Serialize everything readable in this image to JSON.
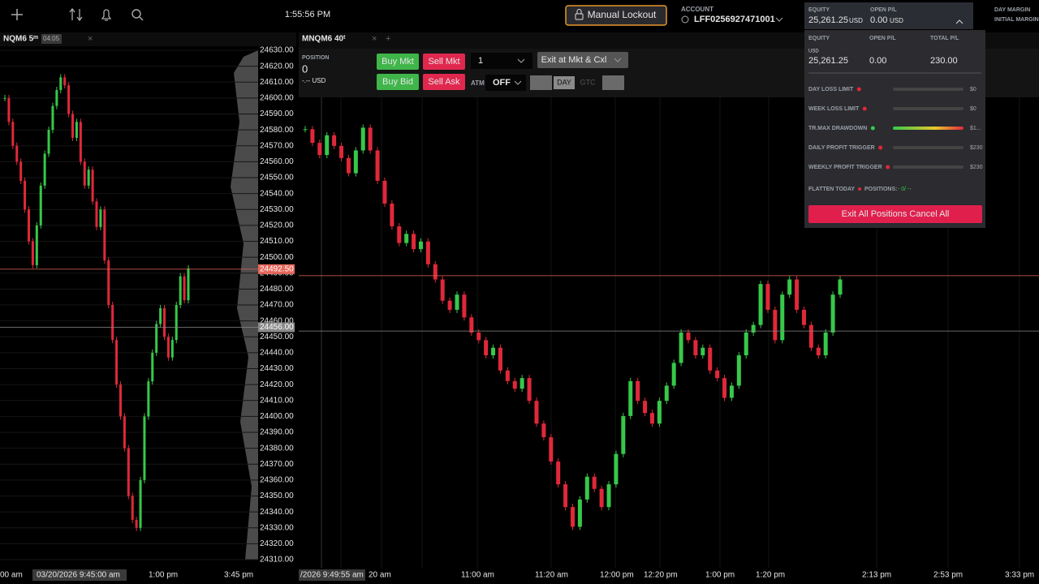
{
  "topbar": {
    "time": "1:55:56 PM",
    "lockout_button": "Manual Lockout",
    "account_label": "ACCOUNT",
    "account_id": "LFF0256927471001",
    "equity_label": "EQUITY",
    "equity_value": "25,261.25",
    "equity_currency": "USD",
    "open_pl_label": "OPEN P/L",
    "open_pl_value": "0.00",
    "open_pl_currency": "USD",
    "day_margin_label": "DAY MARGIN",
    "initial_margin_label": "INITIAL MARGIN"
  },
  "left_chart": {
    "type": "candlestick",
    "tab": "NQM6 5ᵐ",
    "timer": "04:05",
    "closes": [
      24600,
      24585,
      24570,
      24560,
      24548,
      24530,
      24510,
      24495,
      24520,
      24545,
      24565,
      24580,
      24595,
      24605,
      24613,
      24608,
      24590,
      24575,
      24585,
      24560,
      24545,
      24555,
      24535,
      24519,
      24530,
      24498,
      24470,
      24448,
      24420,
      24400,
      24380,
      24350,
      24335,
      24330,
      24360,
      24400,
      24422,
      24440,
      24458,
      24468,
      24450,
      24437,
      24448,
      24470,
      24488,
      24473,
      24493
    ],
    "ylim": [
      24310,
      24630
    ],
    "yticks": [
      {
        "value": 24630,
        "label": "24630.00"
      },
      {
        "value": 24620,
        "label": "24620.00"
      },
      {
        "value": 24610,
        "label": "24610.00"
      },
      {
        "value": 24600,
        "label": "24600.00"
      },
      {
        "value": 24590,
        "label": "24590.00"
      },
      {
        "value": 24580,
        "label": "24580.00"
      },
      {
        "value": 24570,
        "label": "24570.00"
      },
      {
        "value": 24560,
        "label": "24560.00"
      },
      {
        "value": 24550,
        "label": "24550.00"
      },
      {
        "value": 24540,
        "label": "24540.00"
      },
      {
        "value": 24530,
        "label": "24530.00"
      },
      {
        "value": 24520,
        "label": "24520.00"
      },
      {
        "value": 24510,
        "label": "24510.00"
      },
      {
        "value": 24500,
        "label": "24500.00"
      },
      {
        "value": 24490,
        "label": "24490.00"
      },
      {
        "value": 24480,
        "label": "24480.00"
      },
      {
        "value": 24470,
        "label": "24470.00"
      },
      {
        "value": 24460,
        "label": "24460.00"
      },
      {
        "value": 24450,
        "label": "24450.00"
      },
      {
        "value": 24440,
        "label": "24440.00"
      },
      {
        "value": 24430,
        "label": "24430.00"
      },
      {
        "value": 24420,
        "label": "24420.00"
      },
      {
        "value": 24410,
        "label": "24410.00"
      },
      {
        "value": 24400,
        "label": "24400.00"
      },
      {
        "value": 24390,
        "label": "24390.00"
      },
      {
        "value": 24380,
        "label": "24380.00"
      },
      {
        "value": 24370,
        "label": "24370.00"
      },
      {
        "value": 24360,
        "label": "24360.00"
      },
      {
        "value": 24350,
        "label": "24350.00"
      },
      {
        "value": 24340,
        "label": "24340.00"
      },
      {
        "value": 24330,
        "label": "24330.00"
      },
      {
        "value": 24320,
        "label": "24320.00"
      },
      {
        "value": 24310,
        "label": "24310.00"
      }
    ],
    "price_markers": [
      {
        "value": 24492.5,
        "label": "24492.50",
        "color": "#e8665a"
      },
      {
        "value": 24456,
        "label": "24456.00",
        "color": "#8a8a8a"
      }
    ],
    "x_labels": [
      "00 am",
      "03/20/2026 9:45:00 am",
      "1:00 pm",
      "3:45 pm"
    ]
  },
  "right_chart": {
    "type": "candlestick",
    "tab": "MNQM6 40ᵗ",
    "closes": [
      24589,
      24580,
      24572,
      24585,
      24578,
      24570,
      24560,
      24575,
      24590,
      24575,
      24555,
      24540,
      24525,
      24514,
      24520,
      24510,
      24515,
      24500,
      24490,
      24476,
      24470,
      24480,
      24465,
      24455,
      24450,
      24440,
      24445,
      24430,
      24423,
      24418,
      24425,
      24410,
      24395,
      24386,
      24370,
      24355,
      24340,
      24327,
      24345,
      24360,
      24352,
      24340,
      24355,
      24375,
      24400,
      24423,
      24410,
      24402,
      24395,
      24410,
      24420,
      24435,
      24455,
      24450,
      24440,
      24445,
      24430,
      24425,
      24412,
      24420,
      24440,
      24455,
      24460,
      24487,
      24470,
      24450,
      24480,
      24490,
      24470,
      24460,
      24445,
      24440,
      24455,
      24480,
      24490
    ],
    "ylim": [
      24300,
      24610
    ],
    "x_labels": [
      "/2026 9:49:55 am",
      "20 am",
      "11:00 am",
      "11:20 am",
      "12:00 pm",
      "12:20 pm",
      "1:00 pm",
      "1:20 pm",
      "2:13 pm",
      "2:53 pm",
      "3:33 pm"
    ]
  },
  "order_bar": {
    "position_label": "POSITION",
    "position": "0",
    "position_value": "-.-- USD",
    "buy_market": "Buy Mkt",
    "sell_market": "Sell Mkt",
    "quantity": "1",
    "exit_button": "Exit at Mkt & Cxl",
    "buy_bid": "Buy Bid",
    "sell_ask": "Sell Ask",
    "atm_label": "ATM",
    "atm_value": "OFF",
    "day": "DAY",
    "gtc": "GTC"
  },
  "risk_panel": {
    "headers": [
      "EQUITY",
      "OPEN P/L",
      "TOTAL P/L"
    ],
    "currency": "USD",
    "values": [
      "25,261.25",
      "0.00",
      "230.00"
    ],
    "limits": [
      {
        "label": "DAY LOSS LIMIT",
        "value": "$0",
        "status_color": "#e0283a"
      },
      {
        "label": "WEEK LOSS LIMIT",
        "value": "$0",
        "status_color": "#e0283a"
      },
      {
        "label": "TR.MAX DRAWDOWN",
        "value": "$1...",
        "status_color": "#37c84a"
      },
      {
        "label": "DAILY PROFIT TRIGGER",
        "value": "$230",
        "status_color": "#e0283a"
      },
      {
        "label": "WEEKLY PROFIT TRIGGER",
        "value": "$230",
        "status_color": "#e0283a"
      }
    ],
    "flatten_label": "FLATTEN TODAY",
    "positions_label": "POSITIONS:",
    "positions_value": "- 0/ --",
    "exit_all_button": "Exit All Positions Cancel All"
  }
}
